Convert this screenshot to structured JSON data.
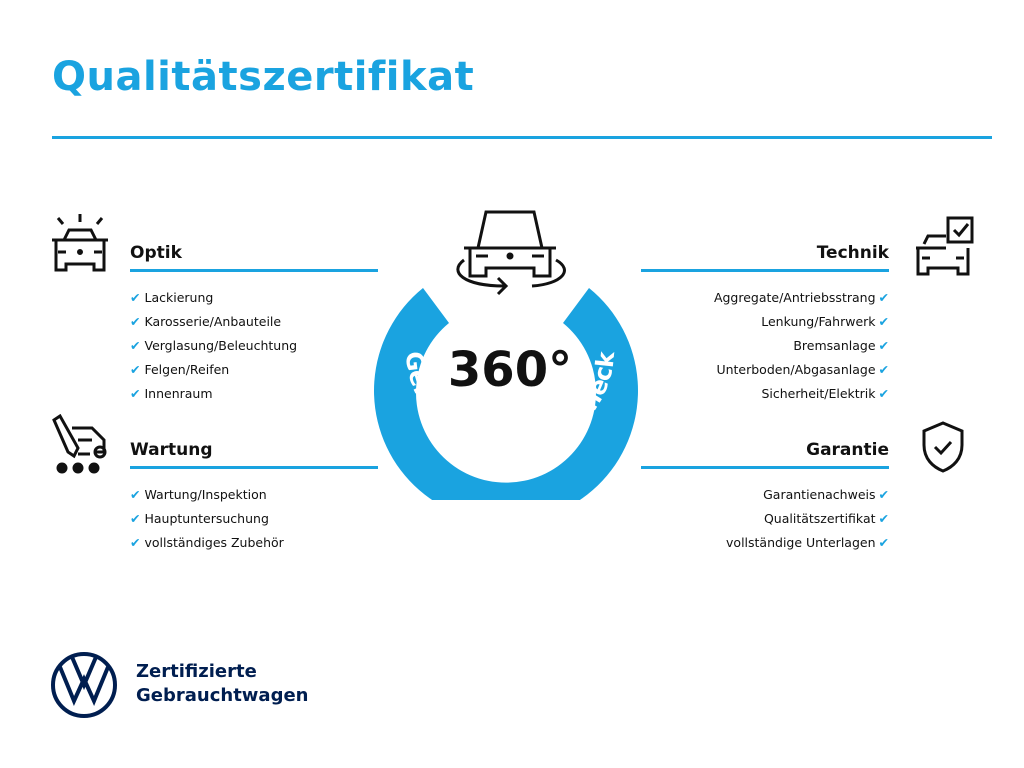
{
  "title": "Qualitätszertifikat",
  "center": {
    "number": "360°",
    "arc_text": "Gebrauchtwagen-Check"
  },
  "sections": {
    "optik": {
      "heading": "Optik",
      "items": [
        "Lackierung",
        "Karosserie/Anbauteile",
        "Verglasung/Beleuchtung",
        "Felgen/Reifen",
        "Innenraum"
      ]
    },
    "wartung": {
      "heading": "Wartung",
      "items": [
        "Wartung/Inspektion",
        "Hauptuntersuchung",
        "vollständiges Zubehör"
      ]
    },
    "technik": {
      "heading": "Technik",
      "items": [
        "Aggregate/Antriebsstrang",
        "Lenkung/Fahrwerk",
        "Bremsanlage",
        "Unterboden/Abgasanlage",
        "Sicherheit/Elektrik"
      ]
    },
    "garantie": {
      "heading": "Garantie",
      "items": [
        "Garantienachweis",
        "Qualitätszertifikat",
        "vollständige Unterlagen"
      ]
    }
  },
  "check": "✔",
  "footer": {
    "line1": "Zertifizierte",
    "line2": "Gebrauchtwagen",
    "logo": "VW"
  },
  "colors": {
    "accent": "#1aa3e0",
    "brand": "#001e50"
  }
}
